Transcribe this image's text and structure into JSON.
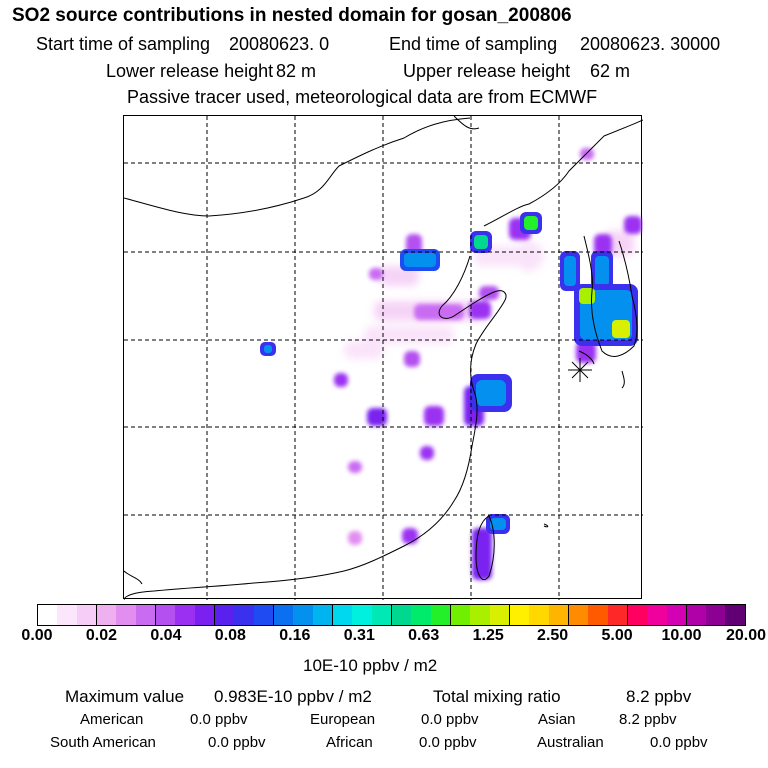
{
  "header": {
    "title": "SO2 source contributions in nested domain for gosan_200806",
    "start_label": "Start time of sampling",
    "start_value": "20080623.     0",
    "end_label": "End time of sampling",
    "end_value": "20080623. 30000",
    "lower_label": "Lower release height",
    "lower_value": "82 m",
    "upper_label": "Upper release height",
    "upper_value": "62 m",
    "tracer_note": "Passive tracer used, meteorological data are from ECMWF"
  },
  "colors": {
    "plume_scale": [
      "#ffffff",
      "#fbe6fb",
      "#f6cdf6",
      "#efb0f0",
      "#e28ef0",
      "#c96cf2",
      "#b450f0",
      "#9b30f2",
      "#7a20f0",
      "#5a20ee",
      "#3a30ee",
      "#1e4cf2",
      "#0a70f0",
      "#0490ee",
      "#00b4f0",
      "#00d8f0",
      "#00f0e0",
      "#00e8b4",
      "#00d890",
      "#00ea6c",
      "#24f02a",
      "#70f000",
      "#a8f000",
      "#d8f000",
      "#fff000",
      "#ffd800",
      "#ffb400",
      "#ff8c00",
      "#ff5a00",
      "#ff2828",
      "#ff0060",
      "#f0009c",
      "#d400b4",
      "#b000a8",
      "#8c0094",
      "#600074"
    ]
  },
  "map": {
    "marker": "receptor-star"
  },
  "colorbar": {
    "ticks": [
      "0.00",
      "0.02",
      "0.04",
      "0.08",
      "0.16",
      "0.31",
      "0.63",
      "1.25",
      "2.50",
      "5.00",
      "10.00",
      "20.00"
    ],
    "units": "10E-10 ppbv / m2"
  },
  "summary": {
    "max_label": "Maximum value",
    "max_value": "0.983E-10 ppbv / m2",
    "total_label": "Total mixing ratio",
    "total_value": "8.2 ppbv",
    "regions": [
      {
        "name": "American",
        "value": "0.0 ppbv"
      },
      {
        "name": "European",
        "value": "0.0 ppbv"
      },
      {
        "name": "Asian",
        "value": "8.2 ppbv"
      },
      {
        "name": "South American",
        "value": "0.0 ppbv"
      },
      {
        "name": "African",
        "value": "0.0 ppbv"
      },
      {
        "name": "Australian",
        "value": "0.0 ppbv"
      }
    ]
  }
}
